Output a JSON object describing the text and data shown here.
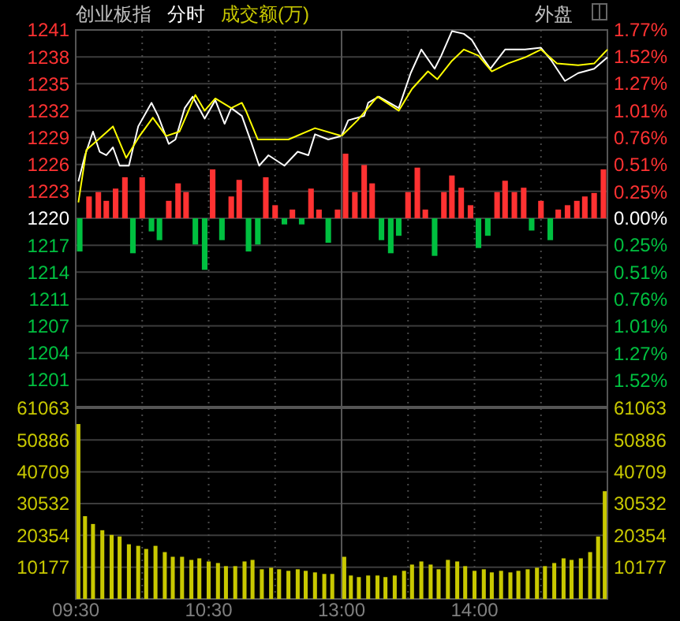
{
  "chart_data": [
    {
      "type": "line",
      "title": "创业板指",
      "subtitle": "分时",
      "annotations": [
        "成交额(万)"
      ],
      "xlim": [
        9.5,
        11.5
      ],
      "xticks": [
        {
          "value": 10,
          "label": null
        },
        {
          "value": 10.5,
          "label": null
        },
        {
          "value": 11,
          "label": null
        }
      ],
      "ylim": [
        1198.22,
        1241.34
      ],
      "yticks": [
        {
          "value": 1241.34,
          "label": "1241"
        },
        {
          "value": 1238.26,
          "label": "1238"
        },
        {
          "value": 1235.18,
          "label": "1235"
        },
        {
          "value": 1232.1,
          "label": "1232"
        },
        {
          "value": 1229.02,
          "label": "1229"
        },
        {
          "value": 1225.94,
          "label": "1226"
        },
        {
          "value": 1222.86,
          "label": "1223"
        },
        {
          "value": 1219.78,
          "label": "1220"
        },
        {
          "value": 1216.7,
          "label": "1217"
        },
        {
          "value": 1213.62,
          "label": "1214"
        },
        {
          "value": 1210.54,
          "label": "1211"
        },
        {
          "value": 1207.46,
          "label": "1207"
        },
        {
          "value": 1204.38,
          "label": "1204"
        },
        {
          "value": 1201.3,
          "label": "1201"
        }
      ],
      "grid": true,
      "tick_labels": "y",
      "series": [
        {
          "type": "bar",
          "x": [
            9.53,
            9.6,
            9.67,
            9.73,
            9.8,
            9.87,
            9.93,
            10,
            10.07,
            10.13,
            10.2,
            10.27,
            10.33,
            10.4,
            10.47,
            10.53,
            10.6,
            10.67,
            10.73,
            10.8,
            10.87,
            10.93,
            11,
            11.07,
            11.13,
            11.2,
            11.27,
            11.33,
            11.4,
            11.47
          ],
          "base": [
            1219.78,
            1219.78,
            1219.78,
            1219.78,
            1219.78,
            1219.78,
            1219.78,
            1219.78,
            1219.78,
            1219.78,
            1219.78,
            1219.78,
            1219.78,
            1219.78,
            1219.78,
            1219.78,
            1219.78,
            1219.78,
            1219.78,
            1219.78,
            1219.78,
            1219.78,
            1219.78,
            1219.78,
            1219.78,
            1219.78,
            1219.78,
            1219.78,
            1219.78,
            1219.78
          ],
          "values": [
            -3.8,
            2.5,
            3.0,
            2.0,
            3.4,
            4.7,
            -4.0,
            4.7,
            -1.5,
            -2.5,
            2.0,
            4.0,
            3.0,
            -3.0,
            -5.9,
            5.6,
            -2.5,
            2.5,
            4.4,
            -3.8,
            -3.0,
            4.7,
            1.5,
            -0.7,
            1.0,
            -0.7,
            3.4,
            1.0,
            -2.8,
            1.0
          ],
          "colors": [
            "#00c040",
            "#ff3232",
            "#ff3232",
            "#ff3232",
            "#ff3232",
            "#ff3232",
            "#00c040",
            "#ff3232",
            "#00c040",
            "#00c040",
            "#ff3232",
            "#ff3232",
            "#ff3232",
            "#00c040",
            "#00c040",
            "#ff3232",
            "#00c040",
            "#ff3232",
            "#ff3232",
            "#00c040",
            "#00c040",
            "#ff3232",
            "#ff3232",
            "#00c040",
            "#ff3232",
            "#00c040",
            "#ff3232",
            "#ff3232",
            "#00c040",
            "#ff3232"
          ]
        },
        {
          "type": "line",
          "color": "#ffffff",
          "x": [
            9.52,
            9.57,
            9.63,
            9.68,
            9.73,
            9.78,
            9.83,
            9.9,
            9.97,
            10.07,
            10.12,
            10.2,
            10.25,
            10.32,
            10.38,
            10.47,
            10.55,
            10.62,
            10.67,
            10.75,
            10.82,
            10.88,
            10.95,
            11.07,
            11.17,
            11.25,
            11.3,
            11.4,
            11.5
          ],
          "values": [
            1224.0,
            1227.0,
            1229.7,
            1227.4,
            1227.0,
            1227.9,
            1225.8,
            1225.8,
            1230.3,
            1233.0,
            1231.5,
            1228.3,
            1228.8,
            1232.4,
            1233.7,
            1231.2,
            1233.3,
            1230.6,
            1232.4,
            1231.5,
            1228.5,
            1225.8,
            1227.0,
            1225.8,
            1227.4,
            1227.0,
            1229.4,
            1228.8,
            1229.2
          ]
        },
        {
          "type": "line",
          "color": "#ffff00",
          "x": [
            9.52,
            9.58,
            9.67,
            9.78,
            9.88,
            9.98,
            10.08,
            10.18,
            10.28,
            10.4,
            10.47,
            10.55,
            10.67,
            10.75,
            10.78,
            10.87,
            11.1,
            11.3,
            11.5
          ],
          "values": [
            1221.6,
            1227.6,
            1228.8,
            1230.3,
            1226.7,
            1229.2,
            1231.3,
            1229.2,
            1229.7,
            1233.9,
            1232.1,
            1233.5,
            1232.4,
            1233.0,
            1232.1,
            1228.8,
            1228.8,
            1230.1,
            1229.2
          ]
        }
      ]
    },
    {
      "type": "line",
      "annotations": [
        "外盘"
      ],
      "xlim": [
        13,
        15
      ],
      "xticks": [
        {
          "value": 13.5,
          "label": null
        },
        {
          "value": 14,
          "label": null
        },
        {
          "value": 14.5,
          "label": null
        }
      ],
      "ylim": [
        1198.22,
        1241.34
      ],
      "yticks": [
        1241.34,
        1238.26,
        1235.18,
        1232.1,
        1229.02,
        1225.94,
        1222.86,
        1219.78,
        1216.7,
        1213.62,
        1210.54,
        1207.46,
        1204.38,
        1201.3
      ],
      "y2lim": [
        -1.77,
        1.77
      ],
      "y2ticks": [
        {
          "value": 1.77,
          "label": "1.77%"
        },
        {
          "value": 1.52,
          "label": "1.52%"
        },
        {
          "value": 1.27,
          "label": "1.27%"
        },
        {
          "value": 1.01,
          "label": "1.01%"
        },
        {
          "value": 0.76,
          "label": "0.76%"
        },
        {
          "value": 0.51,
          "label": "0.51%"
        },
        {
          "value": 0.25,
          "label": "0.25%"
        },
        {
          "value": 0,
          "label": "0.00%"
        },
        {
          "value": -0.25,
          "label": "0.25%"
        },
        {
          "value": -0.51,
          "label": "0.51%"
        },
        {
          "value": -0.76,
          "label": "0.76%"
        },
        {
          "value": -1.01,
          "label": "1.01%"
        },
        {
          "value": -1.27,
          "label": "1.27%"
        },
        {
          "value": -1.52,
          "label": "1.52%"
        }
      ],
      "grid": true,
      "tick_labels": false,
      "series": [
        {
          "type": "bar",
          "x": [
            13.03,
            13.1,
            13.17,
            13.23,
            13.3,
            13.37,
            13.43,
            13.5,
            13.57,
            13.63,
            13.7,
            13.77,
            13.83,
            13.9,
            13.97,
            14.03,
            14.1,
            14.17,
            14.23,
            14.3,
            14.37,
            14.43,
            14.5,
            14.57,
            14.63,
            14.7,
            14.77,
            14.83,
            14.9,
            14.97
          ],
          "base": [
            1219.78,
            1219.78,
            1219.78,
            1219.78,
            1219.78,
            1219.78,
            1219.78,
            1219.78,
            1219.78,
            1219.78,
            1219.78,
            1219.78,
            1219.78,
            1219.78,
            1219.78,
            1219.78,
            1219.78,
            1219.78,
            1219.78,
            1219.78,
            1219.78,
            1219.78,
            1219.78,
            1219.78,
            1219.78,
            1219.78,
            1219.78,
            1219.78,
            1219.78,
            1219.78
          ],
          "values": [
            7.4,
            3.0,
            6.1,
            4.0,
            -2.5,
            -4.0,
            -2.0,
            3.0,
            5.8,
            1.0,
            -4.3,
            3.0,
            4.9,
            3.5,
            1.5,
            -3.4,
            -2.0,
            3.0,
            4.3,
            3.0,
            3.5,
            -1.4,
            2.0,
            -2.5,
            1.0,
            1.5,
            2.0,
            2.5,
            2.9,
            5.6
          ],
          "colors": [
            "#ff3232",
            "#ff3232",
            "#ff3232",
            "#ff3232",
            "#00c040",
            "#00c040",
            "#00c040",
            "#ff3232",
            "#ff3232",
            "#ff3232",
            "#00c040",
            "#ff3232",
            "#ff3232",
            "#ff3232",
            "#ff3232",
            "#00c040",
            "#00c040",
            "#ff3232",
            "#ff3232",
            "#ff3232",
            "#ff3232",
            "#00c040",
            "#ff3232",
            "#00c040",
            "#ff3232",
            "#ff3232",
            "#ff3232",
            "#ff3232",
            "#ff3232",
            "#ff3232"
          ]
        },
        {
          "type": "line",
          "color": "#ffffff",
          "x": [
            13,
            13.05,
            13.17,
            13.2,
            13.28,
            13.43,
            13.52,
            13.6,
            13.7,
            13.75,
            13.83,
            13.92,
            13.98,
            14.05,
            14.12,
            14.23,
            14.38,
            14.5,
            14.58,
            14.68,
            14.78,
            14.9,
            15
          ],
          "values": [
            1229.2,
            1231.0,
            1231.5,
            1233.0,
            1233.7,
            1232.4,
            1236.4,
            1239.1,
            1236.9,
            1238.4,
            1241.2,
            1240.9,
            1240.2,
            1238.4,
            1236.9,
            1239.1,
            1239.1,
            1239.3,
            1237.8,
            1235.5,
            1236.4,
            1236.9,
            1238.2
          ]
        },
        {
          "type": "line",
          "color": "#ffff00",
          "x": [
            13,
            13.12,
            13.27,
            13.43,
            13.53,
            13.65,
            13.72,
            13.83,
            13.92,
            14.03,
            14.13,
            14.25,
            14.38,
            14.5,
            14.62,
            14.78,
            14.9,
            15
          ],
          "values": [
            1229.2,
            1231.0,
            1233.7,
            1232.1,
            1234.6,
            1236.6,
            1235.7,
            1237.8,
            1239.1,
            1238.4,
            1236.6,
            1237.5,
            1238.2,
            1239.1,
            1237.5,
            1237.3,
            1237.5,
            1239.1
          ]
        }
      ]
    },
    {
      "type": "bar",
      "color": "#c8c800",
      "xlim": [
        9.5,
        11.5
      ],
      "xticks": [
        {
          "value": 9.5,
          "label": "09:30"
        },
        {
          "value": 10,
          "label": null
        },
        {
          "value": 10.5,
          "label": "10:30"
        },
        {
          "value": 11,
          "label": null
        }
      ],
      "ylim": [
        0,
        61063
      ],
      "yticks": [
        10177,
        20354,
        30532,
        40709,
        50886,
        61063
      ],
      "grid": true,
      "x": [
        9.52,
        9.57,
        9.63,
        9.7,
        9.77,
        9.83,
        9.9,
        9.97,
        10.03,
        10.1,
        10.17,
        10.23,
        10.3,
        10.37,
        10.43,
        10.5,
        10.57,
        10.63,
        10.7,
        10.77,
        10.83,
        10.9,
        10.97,
        11.03,
        11.1,
        11.17,
        11.23,
        11.3,
        11.37,
        11.43
      ],
      "values": [
        56000,
        26500,
        24000,
        22000,
        20500,
        20000,
        17500,
        17000,
        16000,
        17000,
        15000,
        13500,
        13500,
        12500,
        13000,
        12000,
        11500,
        10500,
        10500,
        12000,
        12500,
        9500,
        10000,
        9500,
        9000,
        9500,
        9000,
        8500,
        8000,
        8000
      ]
    },
    {
      "type": "bar",
      "xlim": [
        13,
        15
      ],
      "xticks": [
        {
          "value": 13,
          "label": "13:00"
        },
        {
          "value": 13.5,
          "label": null
        },
        {
          "value": 14,
          "label": "14:00"
        },
        {
          "value": 14.5,
          "label": null
        }
      ],
      "y2lim": [
        0,
        61063
      ],
      "y2ticks": [
        10177,
        20354,
        30532,
        40709,
        50886,
        61063
      ],
      "grid": true,
      "series": [
        {
          "axis": "y2",
          "color": "#c8c800",
          "x": [
            13.02,
            13.07,
            13.13,
            13.2,
            13.27,
            13.33,
            13.4,
            13.47,
            13.53,
            13.6,
            13.67,
            13.73,
            13.8,
            13.87,
            13.93,
            14,
            14.07,
            14.13,
            14.2,
            14.27,
            14.33,
            14.4,
            14.47,
            14.53,
            14.6,
            14.67,
            14.73,
            14.8,
            14.87,
            14.93,
            14.98
          ],
          "values": [
            13500,
            7500,
            7000,
            7500,
            7500,
            7000,
            7500,
            9000,
            11000,
            12000,
            11000,
            9500,
            12500,
            12000,
            10500,
            9000,
            9500,
            8500,
            9000,
            8500,
            9000,
            9500,
            10000,
            10500,
            11500,
            13000,
            12500,
            13000,
            15000,
            20000,
            34500
          ]
        }
      ]
    }
  ]
}
